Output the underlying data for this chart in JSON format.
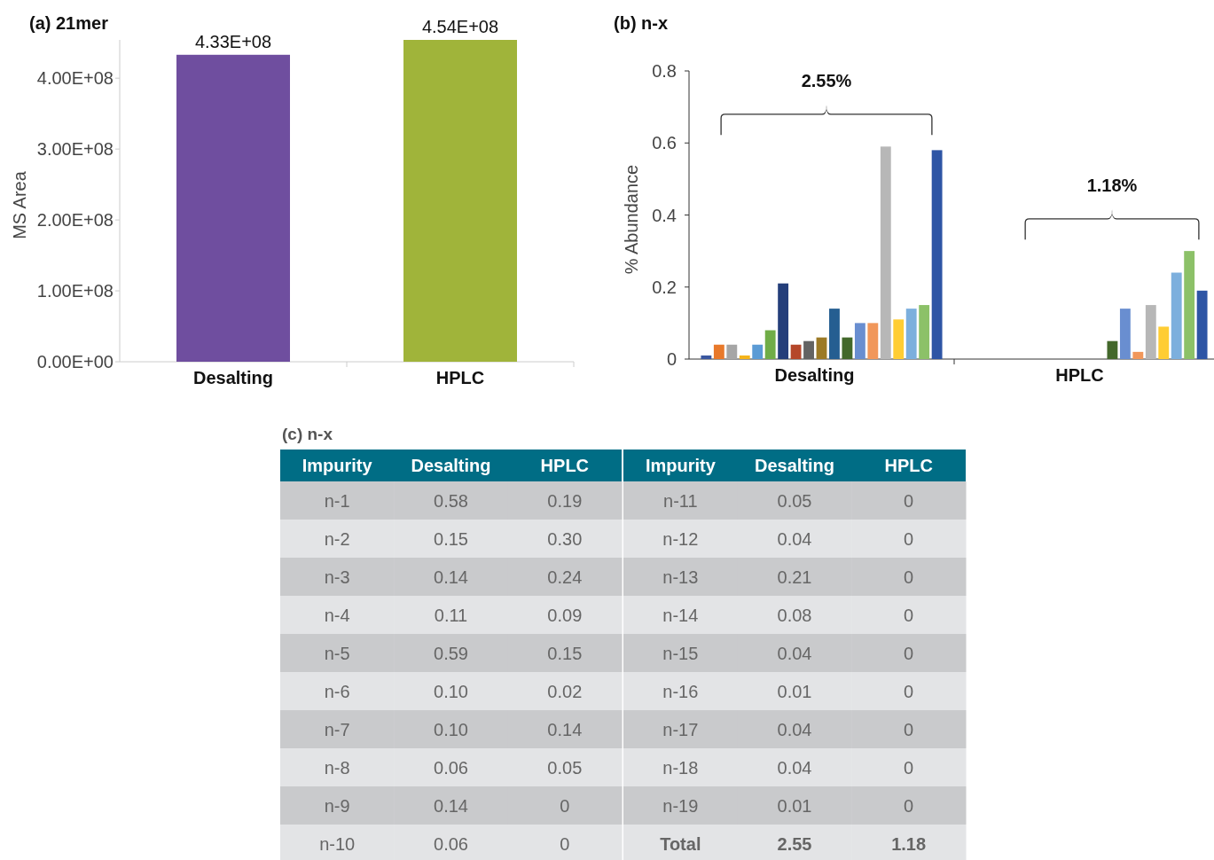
{
  "chart_data": [
    {
      "type": "bar",
      "title": "(a) 21mer",
      "ylabel": "MS Area",
      "categories": [
        "Desalting",
        "HPLC"
      ],
      "values": [
        433000000,
        454000000
      ],
      "colors": [
        "#6f4e9f",
        "#a0b43a"
      ],
      "value_labels": [
        "4.33E+08",
        "4.54E+08"
      ],
      "ylim": [
        0,
        454000000
      ],
      "yticks": [
        {
          "value": 0,
          "label": "0.00E+00"
        },
        {
          "value": 100000000,
          "label": "1.00E+08"
        },
        {
          "value": 200000000,
          "label": "2.00E+08"
        },
        {
          "value": 300000000,
          "label": "3.00E+08"
        },
        {
          "value": 400000000,
          "label": "4.00E+08"
        }
      ]
    },
    {
      "type": "bar",
      "title": "(b) n-x",
      "ylabel": "% Abundance",
      "categories": [
        "Desalting",
        "HPLC"
      ],
      "ylim": [
        0,
        0.8
      ],
      "yticks": [
        0,
        0.2,
        0.4,
        0.6,
        0.8
      ],
      "annotations": [
        "2.55%",
        "1.18%"
      ],
      "series": [
        {
          "color": "#3a57a0",
          "values": [
            0.01,
            0
          ]
        },
        {
          "color": "#e8792b",
          "values": [
            0.04,
            0
          ]
        },
        {
          "color": "#a6a6a6",
          "values": [
            0.04,
            0
          ]
        },
        {
          "color": "#f5b41a",
          "values": [
            0.01,
            0
          ]
        },
        {
          "color": "#5b9bd5",
          "values": [
            0.04,
            0
          ]
        },
        {
          "color": "#70ad47",
          "values": [
            0.08,
            0
          ]
        },
        {
          "color": "#243e7a",
          "values": [
            0.21,
            0
          ]
        },
        {
          "color": "#b5472a",
          "values": [
            0.04,
            0
          ]
        },
        {
          "color": "#636363",
          "values": [
            0.05,
            0
          ]
        },
        {
          "color": "#9c7a26",
          "values": [
            0.06,
            0
          ]
        },
        {
          "color": "#255e91",
          "values": [
            0.14,
            0
          ]
        },
        {
          "color": "#43682b",
          "values": [
            0.06,
            0.05
          ]
        },
        {
          "color": "#698ed0",
          "values": [
            0.1,
            0.14
          ]
        },
        {
          "color": "#f1975a",
          "values": [
            0.1,
            0.02
          ]
        },
        {
          "color": "#b7b7b7",
          "values": [
            0.59,
            0.15
          ]
        },
        {
          "color": "#ffcd33",
          "values": [
            0.11,
            0.09
          ]
        },
        {
          "color": "#7cafdd",
          "values": [
            0.14,
            0.24
          ]
        },
        {
          "color": "#8cc168",
          "values": [
            0.15,
            0.3
          ]
        },
        {
          "color": "#2e55a5",
          "values": [
            0.58,
            0.19
          ]
        }
      ]
    },
    {
      "type": "heatmap",
      "title": "(c) n-x",
      "ylabel": "Impurity",
      "categories": [
        "Desalting",
        "HPLC"
      ],
      "y_categories": [
        "n-1",
        "n-2",
        "n-3",
        "n-4",
        "n-5",
        "n-6",
        "n-7",
        "n-8",
        "n-9",
        "n-10"
      ],
      "cells": [
        [
          0.58,
          0.19
        ],
        [
          0.15,
          0.3
        ],
        [
          0.14,
          0.24
        ],
        [
          0.11,
          0.09
        ],
        [
          0.59,
          0.15
        ],
        [
          0.1,
          0.02
        ],
        [
          0.1,
          0.14
        ],
        [
          0.06,
          0.05
        ],
        [
          0.14,
          0
        ],
        [
          0.06,
          0
        ]
      ],
      "cell_labels": [
        [
          "0.58",
          "0.19"
        ],
        [
          "0.15",
          "0.30"
        ],
        [
          "0.14",
          "0.24"
        ],
        [
          "0.11",
          "0.09"
        ],
        [
          "0.59",
          "0.15"
        ],
        [
          "0.10",
          "0.02"
        ],
        [
          "0.10",
          "0.14"
        ],
        [
          "0.06",
          "0.05"
        ],
        [
          "0.14",
          "0"
        ],
        [
          "0.06",
          "0"
        ]
      ]
    },
    {
      "type": "heatmap",
      "ylabel": "Impurity",
      "categories": [
        "Desalting",
        "HPLC"
      ],
      "y_categories": [
        "n-11",
        "n-12",
        "n-13",
        "n-14",
        "n-15",
        "n-16",
        "n-17",
        "n-18",
        "n-19",
        "Total"
      ],
      "cells": [
        [
          0.05,
          0
        ],
        [
          0.04,
          0
        ],
        [
          0.21,
          0
        ],
        [
          0.08,
          0
        ],
        [
          0.04,
          0
        ],
        [
          0.01,
          0
        ],
        [
          0.04,
          0
        ],
        [
          0.04,
          0
        ],
        [
          0.01,
          0
        ],
        [
          2.55,
          1.18
        ]
      ],
      "cell_labels": [
        [
          "0.05",
          "0"
        ],
        [
          "0.04",
          "0"
        ],
        [
          "0.21",
          "0"
        ],
        [
          "0.08",
          "0"
        ],
        [
          "0.04",
          "0"
        ],
        [
          "0.01",
          "0"
        ],
        [
          "0.04",
          "0"
        ],
        [
          "0.04",
          "0"
        ],
        [
          "0.01",
          "0"
        ],
        [
          "2.55",
          "1.18"
        ]
      ]
    }
  ]
}
